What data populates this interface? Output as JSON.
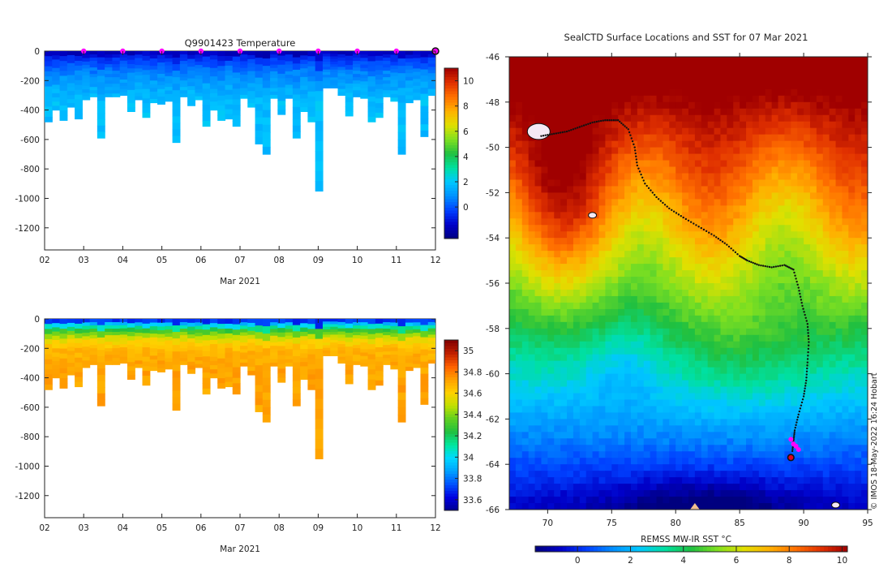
{
  "colors": {
    "background": "#ffffff",
    "temp_scale": [
      "#00007f",
      "#0000c8",
      "#0040ff",
      "#0090ff",
      "#00c8ff",
      "#00e0a0",
      "#20c040",
      "#80e020",
      "#e0e000",
      "#ffb000",
      "#ff7000",
      "#e03000",
      "#a00000"
    ],
    "sal_scale": [
      "#00008f",
      "#0000e0",
      "#0050ff",
      "#00a0ff",
      "#00d8ff",
      "#00e8a0",
      "#20c040",
      "#60d020",
      "#c0e000",
      "#ffd000",
      "#ffa000",
      "#ff6000",
      "#c02000",
      "#800000"
    ],
    "track": "#111111",
    "marker": "#ff00ff"
  },
  "chart_data": [
    {
      "id": "temperature-section",
      "type": "heatmap",
      "title": "Q9901423  Temperature",
      "xlabel": "Mar 2021",
      "x_ticks": [
        "02",
        "03",
        "04",
        "05",
        "06",
        "07",
        "08",
        "09",
        "10",
        "11",
        "12"
      ],
      "x_range": [
        2,
        12
      ],
      "ylabel": "",
      "y_ticks": [
        0,
        -200,
        -400,
        -600,
        -800,
        -1000,
        -1200
      ],
      "ylim": [
        -1350,
        0
      ],
      "colorbar": {
        "ticks": [
          0,
          2,
          4,
          6,
          8,
          10
        ],
        "range": [
          -2.5,
          11
        ]
      },
      "surface_markers_day": [
        3,
        4,
        5,
        6,
        7,
        8,
        9,
        10,
        11
      ],
      "profile_max_depth_m": [
        -480,
        -400,
        -470,
        -380,
        -460,
        -330,
        -310,
        -590,
        -310,
        -310,
        -300,
        -410,
        -330,
        -450,
        -350,
        -360,
        -340,
        -620,
        -310,
        -370,
        -330,
        -510,
        -400,
        -470,
        -460,
        -510,
        -320,
        -380,
        -630,
        -700,
        -320,
        -430,
        -320,
        -590,
        -410,
        -480,
        -950,
        -250,
        -250,
        -300,
        -440,
        -310,
        -320,
        -480,
        -450,
        -310,
        -340,
        -700,
        -350,
        -330,
        -580,
        -300
      ],
      "profile_colors": [
        {
          "depth_m": 0,
          "value": -1.5
        },
        {
          "depth_m": -40,
          "value": -0.5
        },
        {
          "depth_m": -100,
          "value": 0.3
        },
        {
          "depth_m": -160,
          "value": 0.9
        },
        {
          "depth_m": -240,
          "value": 1.4
        },
        {
          "depth_m": -320,
          "value": 1.8
        }
      ]
    },
    {
      "id": "salinity-section",
      "type": "heatmap",
      "title": "",
      "xlabel": "Mar 2021",
      "x_ticks": [
        "02",
        "03",
        "04",
        "05",
        "06",
        "07",
        "08",
        "09",
        "10",
        "11",
        "12"
      ],
      "x_range": [
        2,
        12
      ],
      "ylabel": "",
      "y_ticks": [
        0,
        -200,
        -400,
        -600,
        -800,
        -1000,
        -1200
      ],
      "ylim": [
        -1350,
        0
      ],
      "colorbar": {
        "ticks": [
          "33.6",
          "33.8",
          "34",
          "34.2",
          "34.4",
          "34.6",
          "34.8",
          "35"
        ],
        "range": [
          33.5,
          35.1
        ]
      },
      "profile_colors": [
        {
          "depth_m": 0,
          "value": 33.7
        },
        {
          "depth_m": -30,
          "value": 34.0
        },
        {
          "depth_m": -70,
          "value": 34.3
        },
        {
          "depth_m": -120,
          "value": 34.55
        },
        {
          "depth_m": -200,
          "value": 34.68
        },
        {
          "depth_m": -300,
          "value": 34.72
        }
      ]
    },
    {
      "id": "sst-map",
      "type": "heatmap",
      "title": "SealCTD Surface Locations and SST for 07 Mar 2021",
      "xlabel": "",
      "ylabel": "",
      "x_ticks": [
        70,
        75,
        80,
        85,
        90,
        95
      ],
      "x_range": [
        67,
        95
      ],
      "y_ticks": [
        -46,
        -48,
        -50,
        -52,
        -54,
        -56,
        -58,
        -60,
        -62,
        -64,
        -66
      ],
      "y_range": [
        -66,
        -46
      ],
      "colorbar": {
        "label": "REMSS MW-IR SST °C",
        "ticks": [
          0,
          2,
          4,
          6,
          8,
          10
        ],
        "range": [
          -1.6,
          10.2
        ]
      },
      "track_lon_lat": [
        [
          69.5,
          -49.5
        ],
        [
          70.5,
          -49.4
        ],
        [
          71.5,
          -49.3
        ],
        [
          72.5,
          -49.1
        ],
        [
          73.5,
          -48.9
        ],
        [
          74.5,
          -48.8
        ],
        [
          75.5,
          -48.8
        ],
        [
          76.3,
          -49.2
        ],
        [
          76.8,
          -50.0
        ],
        [
          77.0,
          -50.8
        ],
        [
          77.6,
          -51.6
        ],
        [
          78.5,
          -52.2
        ],
        [
          79.5,
          -52.7
        ],
        [
          80.6,
          -53.1
        ],
        [
          81.8,
          -53.5
        ],
        [
          83.0,
          -53.9
        ],
        [
          84.0,
          -54.3
        ],
        [
          85.0,
          -54.8
        ],
        [
          85.6,
          -55.0
        ],
        [
          86.5,
          -55.2
        ],
        [
          87.5,
          -55.3
        ],
        [
          88.5,
          -55.2
        ],
        [
          89.2,
          -55.4
        ],
        [
          89.6,
          -56.2
        ],
        [
          89.9,
          -57.0
        ],
        [
          90.3,
          -57.8
        ],
        [
          90.4,
          -58.6
        ],
        [
          90.3,
          -59.5
        ],
        [
          90.2,
          -60.3
        ],
        [
          90.0,
          -61.0
        ],
        [
          89.6,
          -61.8
        ],
        [
          89.3,
          -62.5
        ],
        [
          89.2,
          -63.0
        ],
        [
          89.1,
          -63.5
        ]
      ],
      "recent_positions_lon_lat": [
        [
          89.0,
          -62.9
        ],
        [
          89.2,
          -63.1
        ],
        [
          89.4,
          -63.2
        ],
        [
          89.6,
          -63.35
        ]
      ],
      "latest_position_lon_lat": [
        89.0,
        -63.7
      ],
      "landmasses": [
        {
          "name": "island-large",
          "lon": 69.3,
          "lat": -49.3
        },
        {
          "name": "island-small",
          "lon": 73.5,
          "lat": -53.0
        },
        {
          "name": "island-edge",
          "lon": 92.5,
          "lat": -65.8
        }
      ],
      "credit": "© IMOS 18-May-2022 16:24 Hobart"
    }
  ]
}
